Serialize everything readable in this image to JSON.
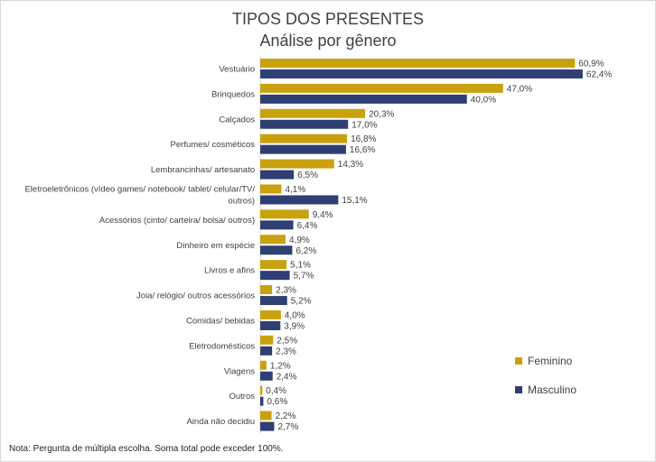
{
  "chart_data": {
    "type": "bar",
    "orientation": "horizontal",
    "title": "TIPOS DOS PRESENTES",
    "subtitle": "Análise por gênero",
    "categories": [
      "Vestuário",
      "Brinquedos",
      "Calçados",
      "Perfumes/ cosméticos",
      "Lembrancinhas/ artesanato",
      "Eletroeletrônicos (vídeo games/ notebook/ tablet/ celular/TV/ outros)",
      "Acessórios (cinto/ carteira/ bolsa/ outros)",
      "Dinheiro em espécie",
      "Livros e afins",
      "Joia/ relógio/ outros acessórios",
      "Comidas/ bebidas",
      "Eletrodomésticos",
      "Viagens",
      "Outros",
      "Ainda não decidiu"
    ],
    "category_lines": [
      [
        "Vestuário"
      ],
      [
        "Brinquedos"
      ],
      [
        "Calçados"
      ],
      [
        "Perfumes/ cosméticos"
      ],
      [
        "Lembrancinhas/ artesanato"
      ],
      [
        "Eletroeletrônicos (vídeo games/ notebook/ tablet/ celular/TV/",
        "outros)"
      ],
      [
        "Acessórios (cinto/ carteira/ bolsa/ outros)"
      ],
      [
        "Dinheiro em espécie"
      ],
      [
        "Livros e afins"
      ],
      [
        "Joia/ relógio/ outros acessórios"
      ],
      [
        "Comidas/ bebidas"
      ],
      [
        "Eletrodomésticos"
      ],
      [
        "Viagens"
      ],
      [
        "Outros"
      ],
      [
        "Ainda não decidiu"
      ]
    ],
    "series": [
      {
        "name": "Feminino",
        "color": "#C9A10F",
        "values": [
          60.9,
          47.0,
          20.3,
          16.8,
          14.3,
          4.1,
          9.4,
          4.9,
          5.1,
          2.3,
          4.0,
          2.5,
          1.2,
          0.4,
          2.2
        ],
        "labels": [
          "60,9%",
          "47,0%",
          "20,3%",
          "16,8%",
          "14,3%",
          "4,1%",
          "9,4%",
          "4,9%",
          "5,1%",
          "2,3%",
          "4,0%",
          "2,5%",
          "1,2%",
          "0,4%",
          "2,2%"
        ]
      },
      {
        "name": "Masculino",
        "color": "#2F3F73",
        "values": [
          62.4,
          40.0,
          17.0,
          16.6,
          6.5,
          15.1,
          6.4,
          6.2,
          5.7,
          5.2,
          3.9,
          2.3,
          2.4,
          0.6,
          2.7
        ],
        "labels": [
          "62,4%",
          "40,0%",
          "17,0%",
          "16,6%",
          "6,5%",
          "15,1%",
          "6,4%",
          "6,2%",
          "5,7%",
          "5,2%",
          "3,9%",
          "2,3%",
          "2,4%",
          "0,6%",
          "2,7%"
        ]
      }
    ],
    "xlim": [
      0,
      64
    ],
    "legend_position": "right",
    "note": "Nota: Pergunta de múltipla escolha. Soma total pode exceder 100%."
  }
}
